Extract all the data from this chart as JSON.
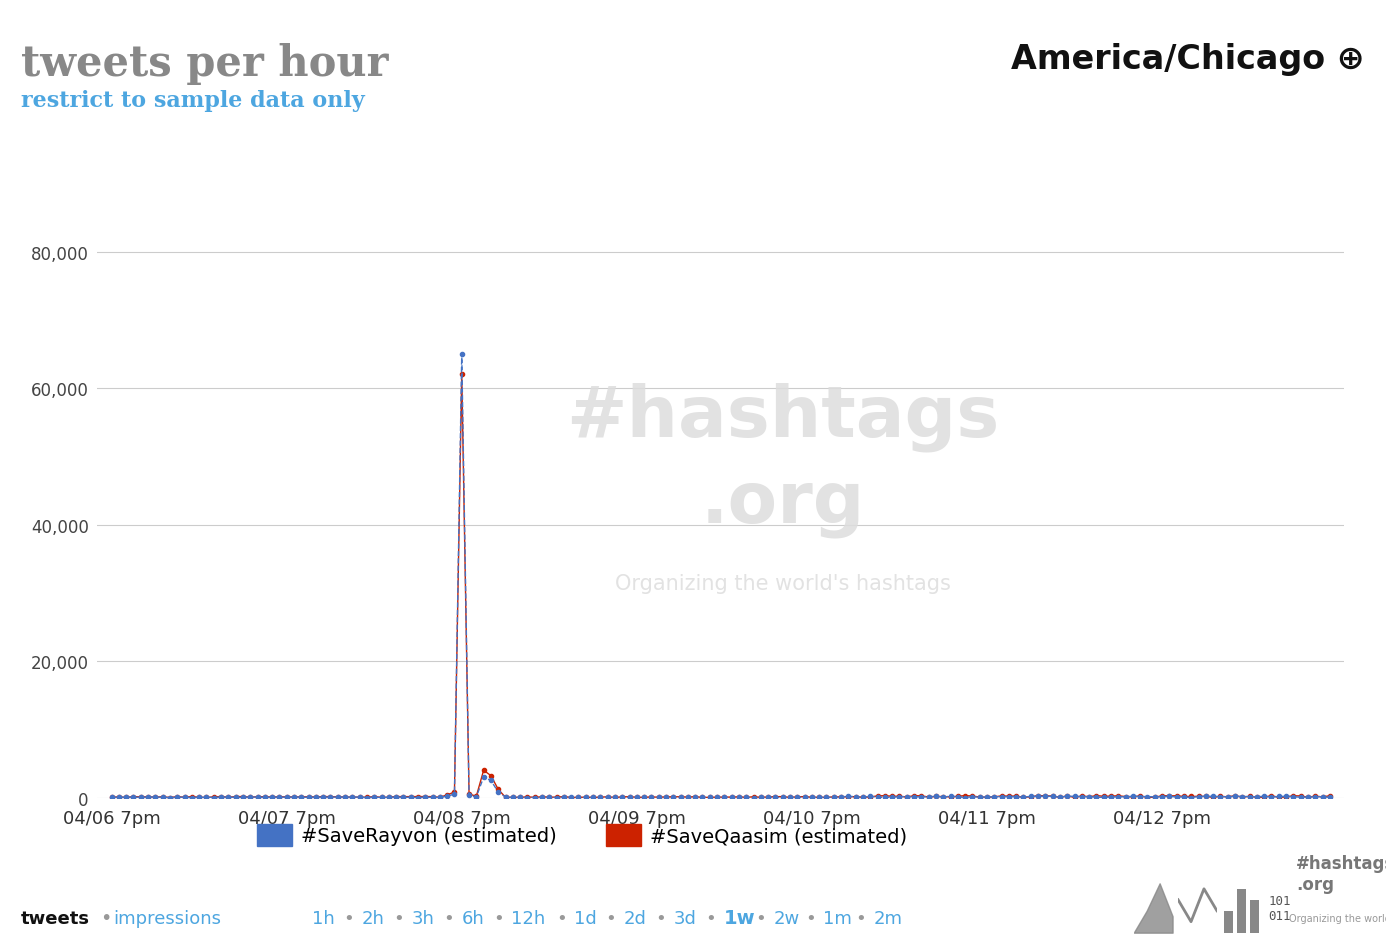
{
  "title": "tweets per hour",
  "subtitle": "restrict to sample data only",
  "timezone_label": "America/Chicago",
  "title_color": "#888888",
  "subtitle_color": "#4da6e0",
  "timezone_color": "#111111",
  "background_color": "#ffffff",
  "grid_color": "#cccccc",
  "x_tick_labels": [
    "04/06 7pm",
    "04/07 7pm",
    "04/08 7pm",
    "04/09 7pm",
    "04/10 7pm",
    "04/11 7pm",
    "04/12 7pm"
  ],
  "ylim": [
    0,
    90000
  ],
  "yticks": [
    0,
    20000,
    40000,
    60000,
    80000
  ],
  "series": [
    {
      "label": "#SaveRayvon (estimated)",
      "color": "#4472c4",
      "marker": "o",
      "markersize": 3,
      "linestyle": "--",
      "linewidth": 1,
      "peak_index": 48,
      "peak_value": 65000
    },
    {
      "label": "#SaveQaasim (estimated)",
      "color": "#cc2200",
      "marker": "o",
      "markersize": 3,
      "linestyle": "-",
      "linewidth": 1,
      "peak_index": 48,
      "peak_value": 62000
    }
  ],
  "n_points": 168,
  "bottom_links": [
    "1h",
    "2h",
    "3h",
    "6h",
    "12h",
    "1d",
    "2d",
    "3d",
    "1w",
    "2w",
    "1m",
    "2m"
  ],
  "bottom_bold_link": "1w"
}
